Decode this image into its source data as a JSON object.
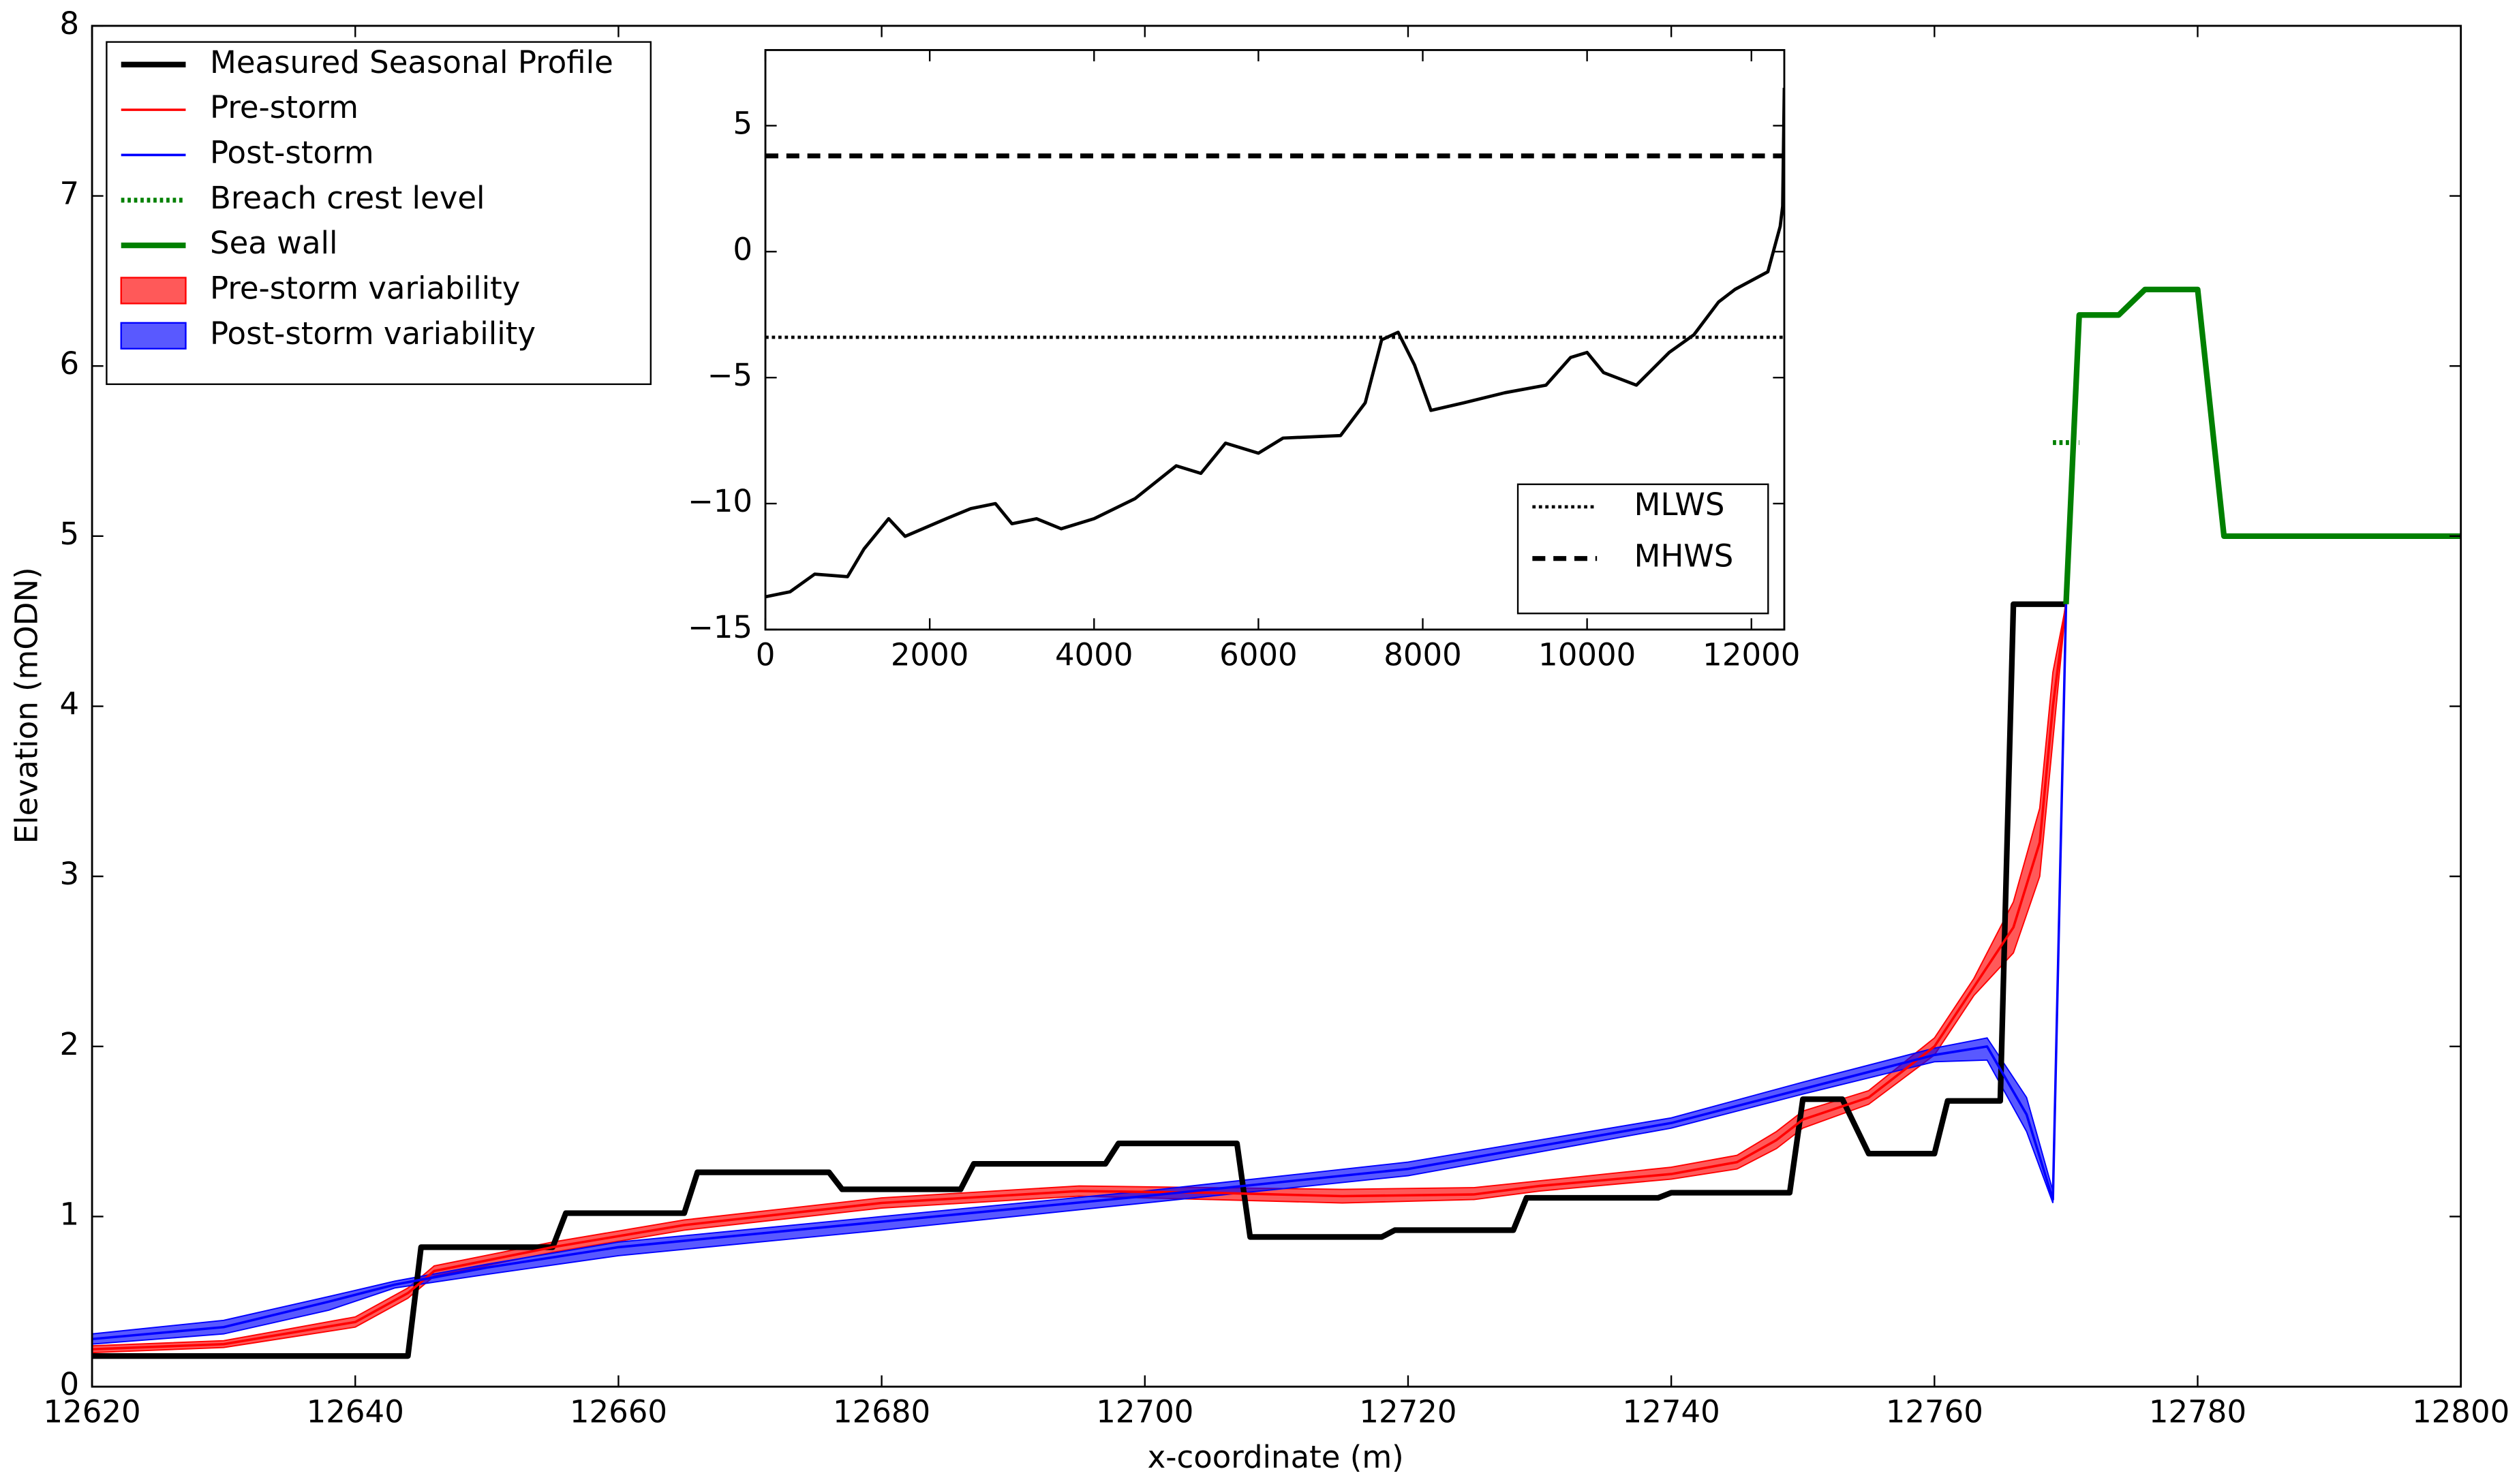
{
  "chart_data": [
    {
      "type": "line",
      "xlabel": "x-coordinate (m)",
      "ylabel": "Elevation (mODN)",
      "xlim": [
        12620,
        12800
      ],
      "ylim": [
        0,
        8
      ],
      "xticks": [
        12620,
        12640,
        12660,
        12680,
        12700,
        12720,
        12740,
        12760,
        12780,
        12800
      ],
      "yticks": [
        0,
        1,
        2,
        3,
        4,
        5,
        6,
        7,
        8
      ],
      "legend": "upper left",
      "series": [
        {
          "name": "Measured Seasonal Profile",
          "color": "#000000",
          "style": "solid",
          "linewidth": 3.5,
          "x": [
            12620,
            12644,
            12645,
            12655,
            12656,
            12665,
            12666,
            12676,
            12677,
            12686,
            12687,
            12697,
            12698,
            12707,
            12708,
            12718,
            12719,
            12728,
            12729,
            12739,
            12740,
            12749,
            12750,
            12753,
            12755,
            12760,
            12761,
            12765,
            12766,
            12770
          ],
          "values": [
            0.18,
            0.18,
            0.82,
            0.82,
            1.02,
            1.02,
            1.26,
            1.26,
            1.16,
            1.16,
            1.31,
            1.31,
            1.43,
            1.43,
            0.88,
            0.88,
            0.92,
            0.92,
            1.11,
            1.11,
            1.14,
            1.14,
            1.69,
            1.69,
            1.37,
            1.37,
            1.68,
            1.68,
            4.6,
            4.6
          ]
        },
        {
          "name": "Pre-storm",
          "color": "#ff0000",
          "style": "solid",
          "linewidth": 1.5,
          "x": [
            12620,
            12630,
            12640,
            12644,
            12646,
            12655,
            12665,
            12680,
            12695,
            12705,
            12715,
            12725,
            12730,
            12740,
            12745,
            12748,
            12750,
            12755,
            12760,
            12763,
            12766,
            12768,
            12769,
            12770
          ],
          "values": [
            0.22,
            0.25,
            0.38,
            0.55,
            0.68,
            0.82,
            0.95,
            1.08,
            1.15,
            1.14,
            1.12,
            1.13,
            1.18,
            1.25,
            1.32,
            1.45,
            1.57,
            1.7,
            2.0,
            2.35,
            2.7,
            3.2,
            4.0,
            4.6
          ]
        },
        {
          "name": "Post-storm",
          "color": "#0000ff",
          "style": "solid",
          "linewidth": 1.5,
          "x": [
            12620,
            12630,
            12638,
            12643,
            12650,
            12660,
            12680,
            12700,
            12720,
            12740,
            12750,
            12760,
            12764,
            12767,
            12769,
            12770
          ],
          "values": [
            0.28,
            0.35,
            0.5,
            0.6,
            0.7,
            0.82,
            0.97,
            1.12,
            1.28,
            1.55,
            1.75,
            1.95,
            2.0,
            1.6,
            1.1,
            4.6
          ]
        },
        {
          "name": "Breach crest level",
          "color": "#008000",
          "style": "dotted",
          "linewidth": 3,
          "x": [
            12769,
            12771
          ],
          "values": [
            5.55,
            5.55
          ]
        },
        {
          "name": "Sea wall",
          "color": "#008000",
          "style": "solid",
          "linewidth": 3.5,
          "x": [
            12770,
            12771,
            12774,
            12776,
            12780,
            12782,
            12800
          ],
          "values": [
            4.6,
            6.3,
            6.3,
            6.45,
            6.45,
            5.0,
            5.0
          ]
        },
        {
          "name": "Pre-storm variability",
          "color": "#ff0000",
          "style": "band",
          "x": [
            12620,
            12630,
            12640,
            12644,
            12646,
            12655,
            12665,
            12680,
            12695,
            12705,
            12715,
            12725,
            12730,
            12740,
            12745,
            12748,
            12750,
            12755,
            12760,
            12763,
            12766,
            12768,
            12769,
            12770
          ],
          "lower": [
            0.2,
            0.23,
            0.35,
            0.52,
            0.65,
            0.79,
            0.92,
            1.05,
            1.12,
            1.1,
            1.08,
            1.1,
            1.15,
            1.22,
            1.28,
            1.4,
            1.52,
            1.66,
            1.95,
            2.3,
            2.55,
            3.0,
            3.8,
            4.6
          ],
          "upper": [
            0.24,
            0.27,
            0.41,
            0.58,
            0.71,
            0.85,
            0.98,
            1.11,
            1.18,
            1.17,
            1.16,
            1.17,
            1.21,
            1.29,
            1.36,
            1.5,
            1.62,
            1.74,
            2.05,
            2.4,
            2.85,
            3.4,
            4.2,
            4.6
          ]
        },
        {
          "name": "Post-storm variability",
          "color": "#0000ff",
          "style": "band",
          "x": [
            12620,
            12630,
            12638,
            12643,
            12650,
            12660,
            12680,
            12700,
            12720,
            12740,
            12750,
            12760,
            12764,
            12767,
            12769,
            12770
          ],
          "lower": [
            0.25,
            0.31,
            0.45,
            0.58,
            0.66,
            0.77,
            0.92,
            1.08,
            1.24,
            1.52,
            1.72,
            1.91,
            1.92,
            1.5,
            1.08,
            4.6
          ],
          "upper": [
            0.31,
            0.39,
            0.53,
            0.62,
            0.72,
            0.85,
            1.0,
            1.15,
            1.32,
            1.58,
            1.79,
            1.99,
            2.05,
            1.7,
            1.15,
            4.6
          ]
        }
      ]
    },
    {
      "type": "line",
      "xlim": [
        0,
        12400
      ],
      "ylim": [
        -15,
        8
      ],
      "xticks": [
        0,
        2000,
        4000,
        6000,
        8000,
        10000,
        12000
      ],
      "yticks": [
        {
          "value": -15,
          "label": "−15"
        },
        {
          "value": -10,
          "label": "−10"
        },
        {
          "value": -5,
          "label": "−5"
        },
        0,
        5
      ],
      "legend": "lower right",
      "series": [
        {
          "color": "#000000",
          "style": "solid",
          "linewidth": 2,
          "x": [
            0,
            300,
            600,
            1000,
            1200,
            1500,
            1700,
            2200,
            2500,
            2800,
            3000,
            3300,
            3600,
            4000,
            4500,
            5000,
            5300,
            5600,
            6000,
            6300,
            7000,
            7300,
            7500,
            7700,
            7900,
            8100,
            8500,
            9000,
            9500,
            9800,
            10000,
            10200,
            10600,
            11000,
            11300,
            11600,
            11800,
            12200,
            12350,
            12380,
            12400
          ],
          "values": [
            -13.7,
            -13.5,
            -12.8,
            -12.9,
            -11.8,
            -10.6,
            -11.3,
            -10.6,
            -10.2,
            -10.0,
            -10.8,
            -10.6,
            -11.0,
            -10.6,
            -9.8,
            -8.5,
            -8.8,
            -7.6,
            -8.0,
            -7.4,
            -7.3,
            -6.0,
            -3.5,
            -3.2,
            -4.5,
            -6.3,
            -6.0,
            -5.6,
            -5.3,
            -4.2,
            -4.0,
            -4.8,
            -5.3,
            -4.0,
            -3.3,
            -2.0,
            -1.5,
            -0.8,
            1.0,
            1.8,
            6.5
          ]
        },
        {
          "name": "MLWS",
          "color": "#000000",
          "style": "dotted",
          "linewidth": 2,
          "x": [
            0,
            12400
          ],
          "values": [
            -3.4,
            -3.4
          ]
        },
        {
          "name": "MHWS",
          "color": "#000000",
          "style": "dashed",
          "linewidth": 3,
          "x": [
            0,
            12400
          ],
          "values": [
            3.8,
            3.8
          ]
        }
      ]
    }
  ]
}
